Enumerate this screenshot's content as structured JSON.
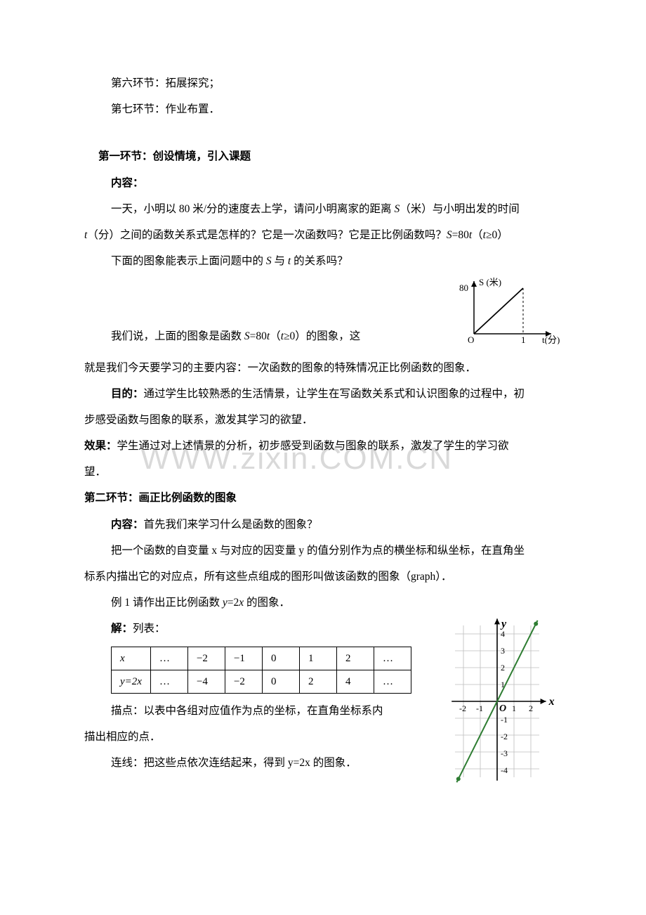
{
  "lines": {
    "l1": "第六环节：拓展探究；",
    "l2": "第七环节：作业布置．",
    "h1": "第一环节：创设情境，引入课题",
    "c1": "内容：",
    "c2a": "一天，小明以 80 米/分的速度去上学，请问小明离家的距离 ",
    "c2s": "S",
    "c2b": "（米）与小明出发的时间",
    "c3a": "t",
    "c3b": "（分）之间的函数关系式是怎样的？它是一次函数吗？它是正比例函数吗？",
    "c3c": "S",
    "c3d": "=80",
    "c3e": "t",
    "c3f": "（",
    "c3g": "t",
    "c3h": "≥0）",
    "c4a": "下面的图象能表示上面问题中的 ",
    "c4s": "S",
    "c4b": " 与 ",
    "c4t": "t",
    "c4c": " 的关系吗？",
    "c5a": "我们说，上面的图象是函数 ",
    "c5s": "S",
    "c5b": "=80",
    "c5t": "t",
    "c5c": "（",
    "c5d": "t",
    "c5e": "≥0）的图象，这",
    "c6": "就是我们今天要学习的主要内容：一次函数的图象的特殊情况正比例函数的图象．",
    "md1": "目的：",
    "md1b": "通过学生比较熟悉的生活情景，让学生在写函数关系式和认识图象的过程中，初",
    "md2": "步感受函数与图象的联系，激发其学习的欲望．",
    "xg1": "效果：",
    "xg1b": "学生通过对上述情景的分析，初步感受到函数与图象的联系，激发了学生的学习欲",
    "xg2": "望．",
    "h2": "第二环节：画正比例函数的图象",
    "n1": "内容：",
    "n1b": "首先我们来学习什么是函数的图象？",
    "n2": "把一个函数的自变量 x 与对应的因变量 y 的值分别作为点的横坐标和纵坐标，在直角坐",
    "n3": "标系内描出它的对应点，所有这些点组成的图形叫做该函数的图象（graph）．",
    "e1a": "例 1 请作出正比例函数 ",
    "e1y": "y",
    "e1b": "=2",
    "e1x": "x",
    "e1c": " 的图象．",
    "s1": "解：",
    "s1b": "列表：",
    "d1": "描点：以表中各组对应值作为点的坐标，在直角坐标系内",
    "d2": "描出相应的点．",
    "lx": "连线：把这些点依次连结起来，得到 y=2x 的图象．",
    "tbl": {
      "r1": [
        "x",
        "…",
        "−2",
        "−1",
        "0",
        "1",
        "2",
        "…"
      ],
      "r2": [
        "y=2x",
        "…",
        "−4",
        "−2",
        "0",
        "2",
        "4",
        "…"
      ]
    }
  },
  "chart1": {
    "y_label": "S (米)",
    "x_label": "t(分)",
    "origin": "O",
    "y_val": "80",
    "x_val": "1",
    "axis_color": "#000000",
    "line_color": "#000000",
    "dash_color": "#000000"
  },
  "chart2": {
    "x_label": "x",
    "y_label": "y",
    "origin": "O",
    "xlim": [
      -2.8,
      2.8
    ],
    "ylim": [
      -4.8,
      4.8
    ],
    "grid_color": "#bdbdbd",
    "axis_color": "#000000",
    "line_color": "#2e7d32",
    "marker_color": "#2e7d32",
    "x_ticks": [
      "-2",
      "-1",
      "1",
      "2"
    ],
    "x_tick_pos": [
      -2,
      -1,
      1,
      2
    ],
    "y_ticks": [
      "1",
      "2",
      "3",
      "4"
    ],
    "y_tick_pos": [
      1,
      2,
      3,
      4
    ],
    "y_ticks_neg": [
      "-1",
      "-2",
      "-3",
      "-4"
    ],
    "y_tick_neg_pos": [
      -1,
      -2,
      -3,
      -4
    ],
    "points": [
      [
        -2,
        -4
      ],
      [
        -1,
        -2
      ],
      [
        0,
        0
      ],
      [
        1,
        2
      ],
      [
        2,
        4
      ]
    ]
  }
}
